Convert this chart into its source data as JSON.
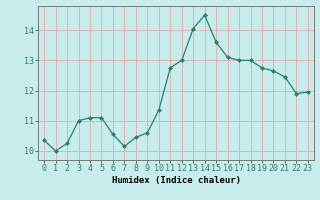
{
  "x": [
    0,
    1,
    2,
    3,
    4,
    5,
    6,
    7,
    8,
    9,
    10,
    11,
    12,
    13,
    14,
    15,
    16,
    17,
    18,
    19,
    20,
    21,
    22,
    23
  ],
  "y": [
    10.35,
    10.0,
    10.25,
    11.0,
    11.1,
    11.1,
    10.55,
    10.15,
    10.45,
    10.6,
    11.35,
    12.75,
    13.0,
    14.05,
    14.5,
    13.6,
    13.1,
    13.0,
    13.0,
    12.75,
    12.65,
    12.45,
    11.9,
    11.95
  ],
  "line_color": "#2e7d6e",
  "marker": "D",
  "marker_size": 2.0,
  "background_color": "#c8ecec",
  "grid_color": "#e0aaaa",
  "xlabel": "Humidex (Indice chaleur)",
  "ylabel": "",
  "title": "",
  "xlim": [
    -0.5,
    23.5
  ],
  "ylim": [
    9.7,
    14.8
  ],
  "yticks": [
    10,
    11,
    12,
    13,
    14
  ],
  "xticks": [
    0,
    1,
    2,
    3,
    4,
    5,
    6,
    7,
    8,
    9,
    10,
    11,
    12,
    13,
    14,
    15,
    16,
    17,
    18,
    19,
    20,
    21,
    22,
    23
  ],
  "xlabel_fontsize": 6.5,
  "tick_fontsize": 6.0,
  "axis_color": "#2e7d6e",
  "spine_color": "#777777",
  "line_width": 0.9
}
